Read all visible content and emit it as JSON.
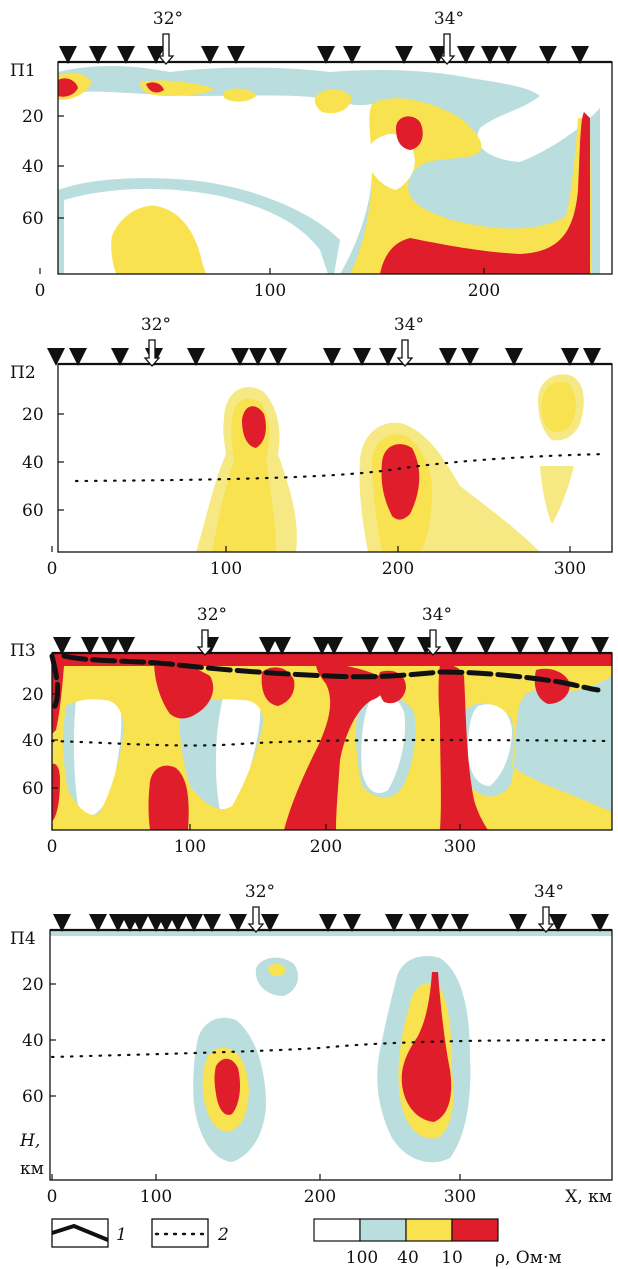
{
  "colors": {
    "blue": "#b9dedd",
    "yellow": "#f9e24f",
    "yellow_light": "#f6e984",
    "red": "#e01d2a",
    "line": "#111111"
  },
  "axes": {
    "x_unit": "X, км",
    "y_unit_h": "H,",
    "y_unit_km": "км"
  },
  "profiles": [
    {
      "id": "p1",
      "label": "П1",
      "x_ticks": [
        "0",
        "100",
        "200"
      ],
      "y_ticks": [
        "20",
        "40",
        "60"
      ],
      "meridians": [
        {
          "label": "32°"
        },
        {
          "label": "34°"
        }
      ]
    },
    {
      "id": "p2",
      "label": "П2",
      "x_ticks": [
        "0",
        "100",
        "200",
        "300"
      ],
      "y_ticks": [
        "20",
        "40",
        "60"
      ],
      "meridians": [
        {
          "label": "32°"
        },
        {
          "label": "34°"
        }
      ]
    },
    {
      "id": "p3",
      "label": "П3",
      "x_ticks": [
        "0",
        "100",
        "200",
        "300"
      ],
      "y_ticks": [
        "20",
        "40",
        "60"
      ],
      "meridians": [
        {
          "label": "32°"
        },
        {
          "label": "34°"
        }
      ]
    },
    {
      "id": "p4",
      "label": "П4",
      "x_ticks": [
        "0",
        "100",
        "200",
        "300"
      ],
      "y_ticks": [
        "20",
        "40",
        "60"
      ],
      "meridians": [
        {
          "label": "32°"
        },
        {
          "label": "34°"
        }
      ]
    }
  ],
  "legend": {
    "line1_num": "1",
    "line2_num": "2",
    "scale_values": [
      "100",
      "40",
      "10"
    ],
    "scale_unit": "ρ, Ом·м"
  }
}
